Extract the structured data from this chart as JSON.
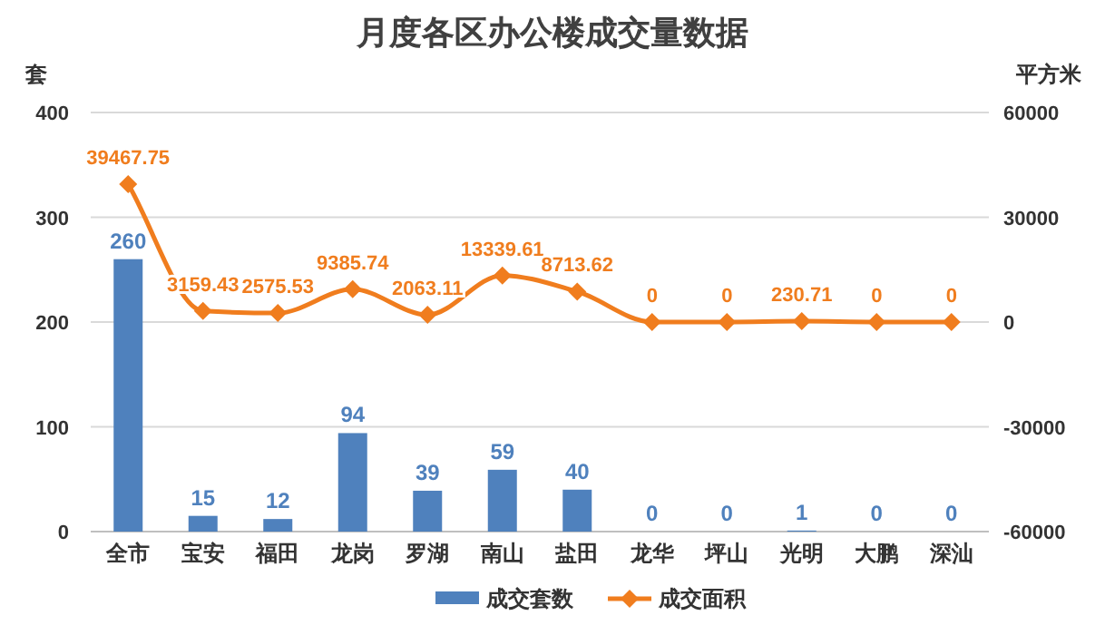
{
  "chart_data": {
    "type": "bar",
    "title": "月度各区办公楼成交量数据",
    "ylabel": "套",
    "y2label": "平方米",
    "categories": [
      "全市",
      "宝安",
      "福田",
      "龙岗",
      "罗湖",
      "南山",
      "盐田",
      "龙华",
      "坪山",
      "光明",
      "大鹏",
      "深汕"
    ],
    "series": [
      {
        "name": "成交套数",
        "color": "#4f81bd",
        "values": [
          260,
          15,
          12,
          94,
          39,
          59,
          40,
          0,
          0,
          1,
          0,
          0
        ]
      },
      {
        "name": "成交面积",
        "type": "line",
        "axis": "y2",
        "marker": "diamond",
        "color": "#f07d1e",
        "values": [
          39467.75,
          3159.43,
          2575.53,
          9385.74,
          2063.11,
          13339.61,
          8713.62,
          0,
          0,
          230.71,
          0,
          0
        ]
      }
    ],
    "ylim": [
      0,
      400
    ],
    "yticks": [
      0,
      100,
      200,
      300,
      400
    ],
    "y2lim": [
      -60000,
      60000
    ],
    "y2ticks": [
      -60000,
      -30000,
      0,
      30000,
      60000
    ],
    "grid": "y",
    "legend": "bottom",
    "data_labels": true
  }
}
